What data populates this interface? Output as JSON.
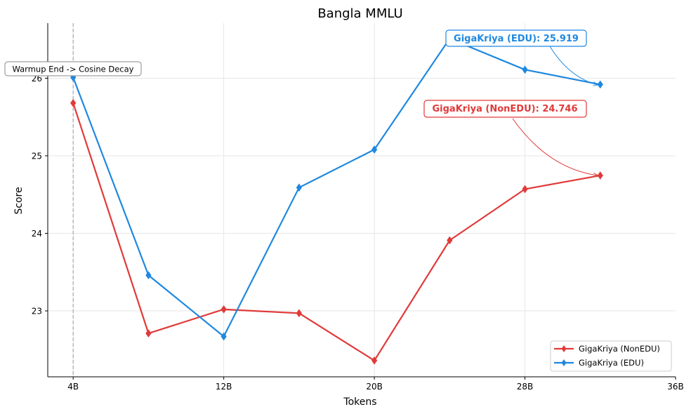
{
  "chart_data": {
    "type": "line",
    "title": "Bangla MMLU",
    "xlabel": "Tokens",
    "ylabel": "Score",
    "x": [
      4,
      8,
      12,
      16,
      20,
      24,
      28,
      32
    ],
    "xticks": [
      {
        "value": 4,
        "label": "4B"
      },
      {
        "value": 12,
        "label": "12B"
      },
      {
        "value": 20,
        "label": "20B"
      },
      {
        "value": 28,
        "label": "28B"
      },
      {
        "value": 36,
        "label": "36B"
      }
    ],
    "yticks": [
      {
        "value": 23,
        "label": "23"
      },
      {
        "value": 24,
        "label": "24"
      },
      {
        "value": 25,
        "label": "25"
      },
      {
        "value": 26,
        "label": "26"
      }
    ],
    "xlim": [
      2.65,
      36
    ],
    "ylim": [
      22.15,
      26.71
    ],
    "grid": true,
    "legend_position": "lower-right",
    "series": [
      {
        "name": "GigaKriya (NonEDU)",
        "color": "#e03a3a",
        "marker": "diamond",
        "values": [
          25.68,
          22.71,
          23.02,
          22.97,
          22.36,
          23.91,
          24.57,
          24.746
        ]
      },
      {
        "name": "GigaKriya (EDU)",
        "color": "#1f88e0",
        "marker": "diamond",
        "values": [
          26.01,
          23.46,
          22.67,
          24.59,
          25.08,
          26.51,
          26.11,
          25.919
        ]
      }
    ],
    "vline": {
      "x": 4,
      "label": "Warmup End -> Cosine Decay"
    },
    "annotations": [
      {
        "series_index": 1,
        "text": "GigaKriya (EDU): 25.919"
      },
      {
        "series_index": 0,
        "text": "GigaKriya (NonEDU): 24.746"
      }
    ]
  }
}
